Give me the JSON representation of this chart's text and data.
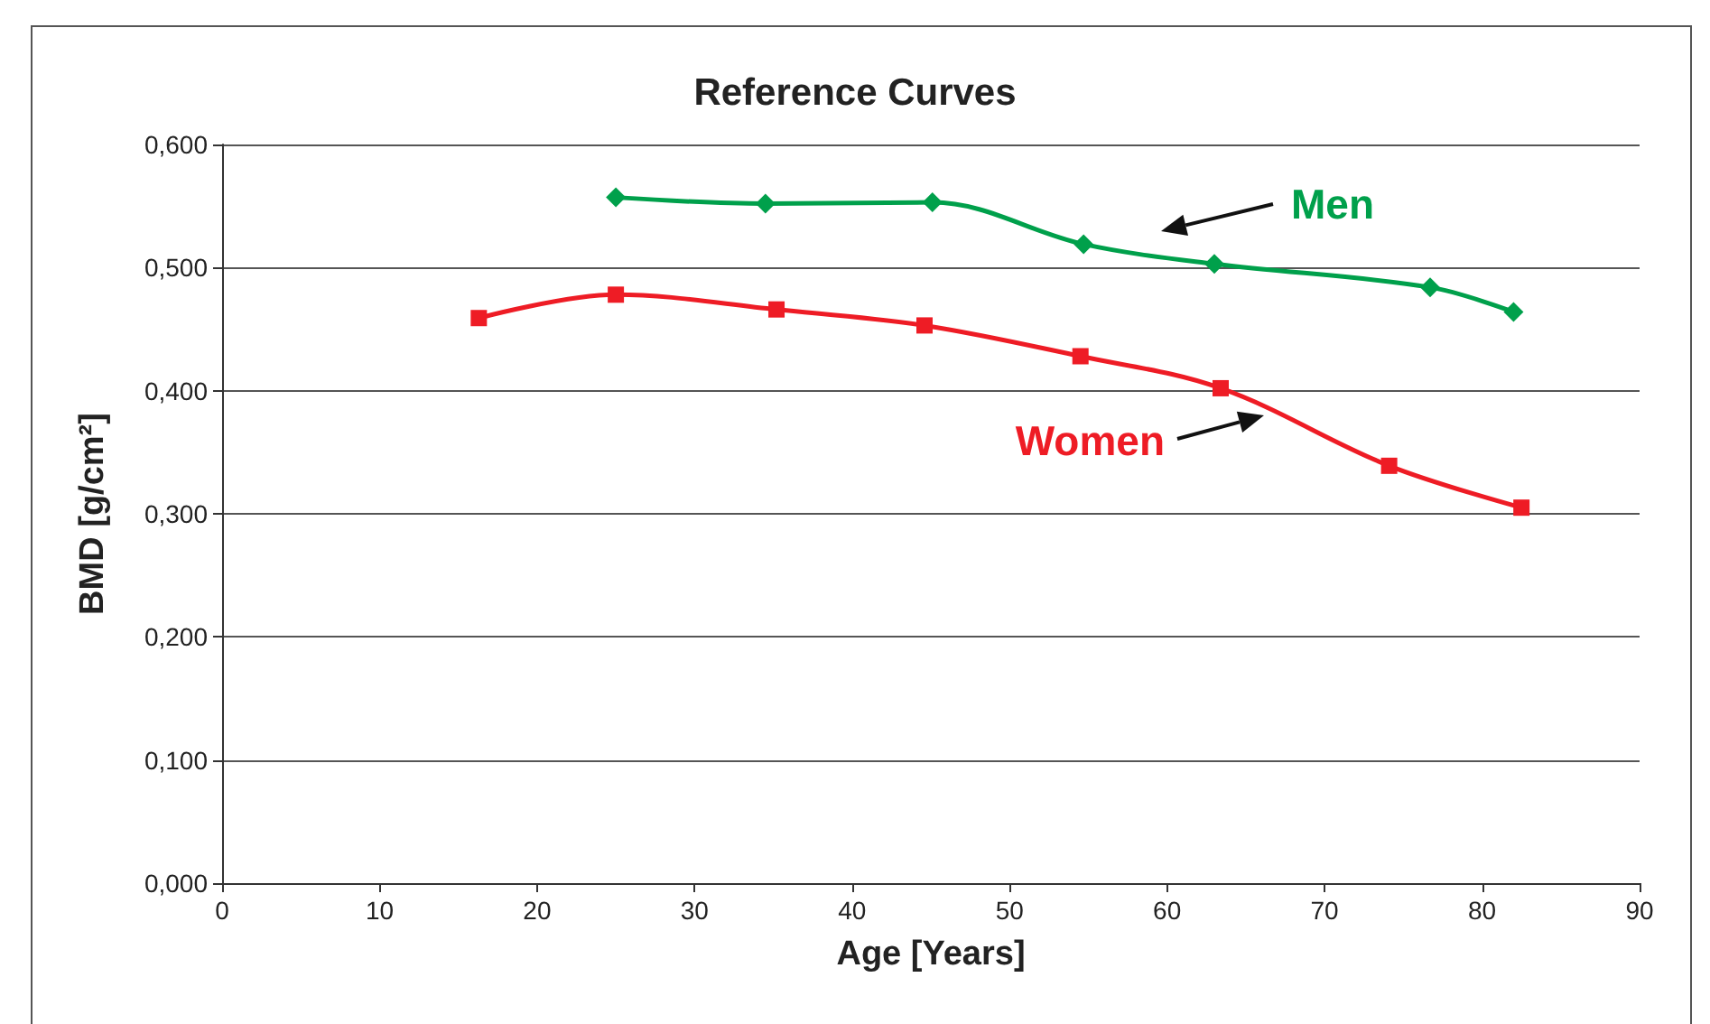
{
  "chart_data": {
    "type": "line",
    "title": "Reference Curves",
    "xlabel": "Age [Years]",
    "ylabel": "BMD [g/cm²]",
    "xlim": [
      0,
      90
    ],
    "xticks": [
      0,
      10,
      20,
      30,
      40,
      50,
      60,
      70,
      80,
      90
    ],
    "ylim": [
      0,
      0.6
    ],
    "yticks": [
      {
        "value": 0,
        "label": "0,000"
      },
      {
        "value": 0.1,
        "label": "0,100"
      },
      {
        "value": 0.2,
        "label": "0,200"
      },
      {
        "value": 0.3,
        "label": "0,300"
      },
      {
        "value": 0.4,
        "label": "0,400"
      },
      {
        "value": 0.5,
        "label": "0,500"
      },
      {
        "value": 0.6,
        "label": "0,600"
      }
    ],
    "grid": "y",
    "legend": false,
    "line_style": "solid",
    "series": [
      {
        "name": "Men",
        "color": "#00a04b",
        "marker": "diamond",
        "x": [
          25.0,
          34.5,
          45.1,
          54.7,
          63.0,
          76.7,
          82.0
        ],
        "values": [
          0.557,
          0.552,
          0.553,
          0.519,
          0.503,
          0.484,
          0.464
        ]
      },
      {
        "name": "Women",
        "color": "#ee1c25",
        "marker": "square",
        "x": [
          16.3,
          25.0,
          35.2,
          44.6,
          54.5,
          63.4,
          74.1,
          82.5
        ],
        "values": [
          0.459,
          0.478,
          0.466,
          0.453,
          0.428,
          0.402,
          0.339,
          0.305
        ]
      }
    ]
  }
}
